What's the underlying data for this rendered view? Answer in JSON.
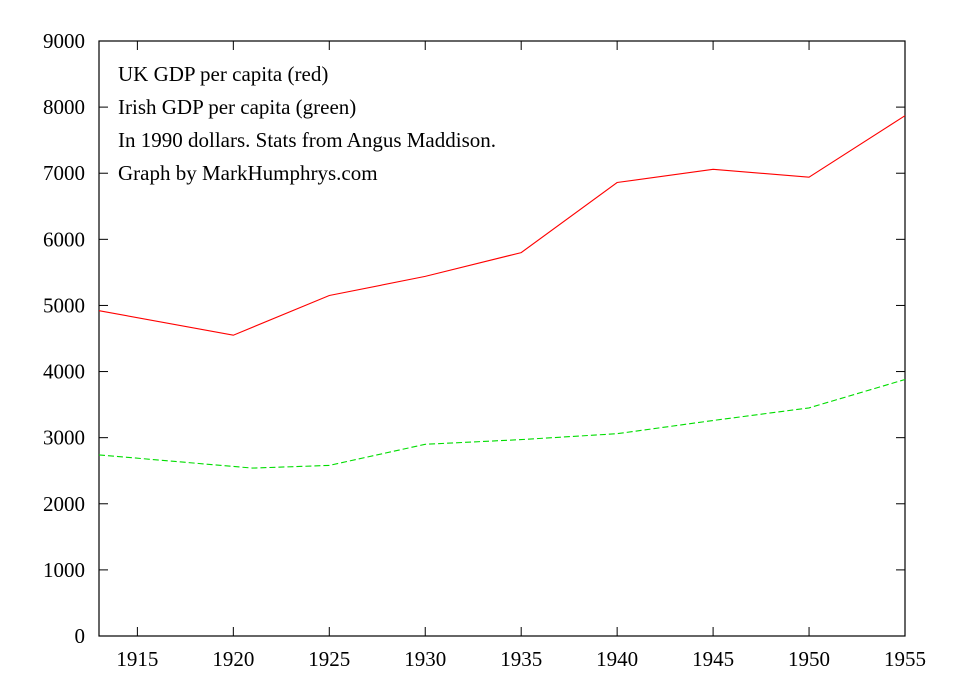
{
  "chart_data": {
    "type": "line",
    "xlim": [
      1913,
      1955
    ],
    "ylim": [
      0,
      9000
    ],
    "x_ticks": [
      1915,
      1920,
      1925,
      1930,
      1935,
      1940,
      1945,
      1950,
      1955
    ],
    "y_ticks": [
      0,
      1000,
      2000,
      3000,
      4000,
      5000,
      6000,
      7000,
      8000,
      9000
    ],
    "annotations": [
      "UK GDP per capita (red)",
      "Irish GDP per capita (green)",
      "In 1990 dollars. Stats from Angus Maddison.",
      "Graph by MarkHumphrys.com"
    ],
    "legend": "none",
    "grid": false,
    "series": [
      {
        "color": "#ff0000",
        "dash": "solid",
        "x": [
          1913,
          1920,
          1925,
          1930,
          1935,
          1940,
          1945,
          1950,
          1955
        ],
        "y": [
          4920,
          4550,
          5150,
          5440,
          5800,
          6860,
          7060,
          6940,
          7870
        ]
      },
      {
        "color": "#00dd00",
        "dash": "dashed",
        "x": [
          1913,
          1921,
          1925,
          1930,
          1935,
          1940,
          1945,
          1950,
          1955
        ],
        "y": [
          2740,
          2540,
          2580,
          2900,
          2970,
          3060,
          3260,
          3450,
          3880
        ]
      }
    ]
  }
}
